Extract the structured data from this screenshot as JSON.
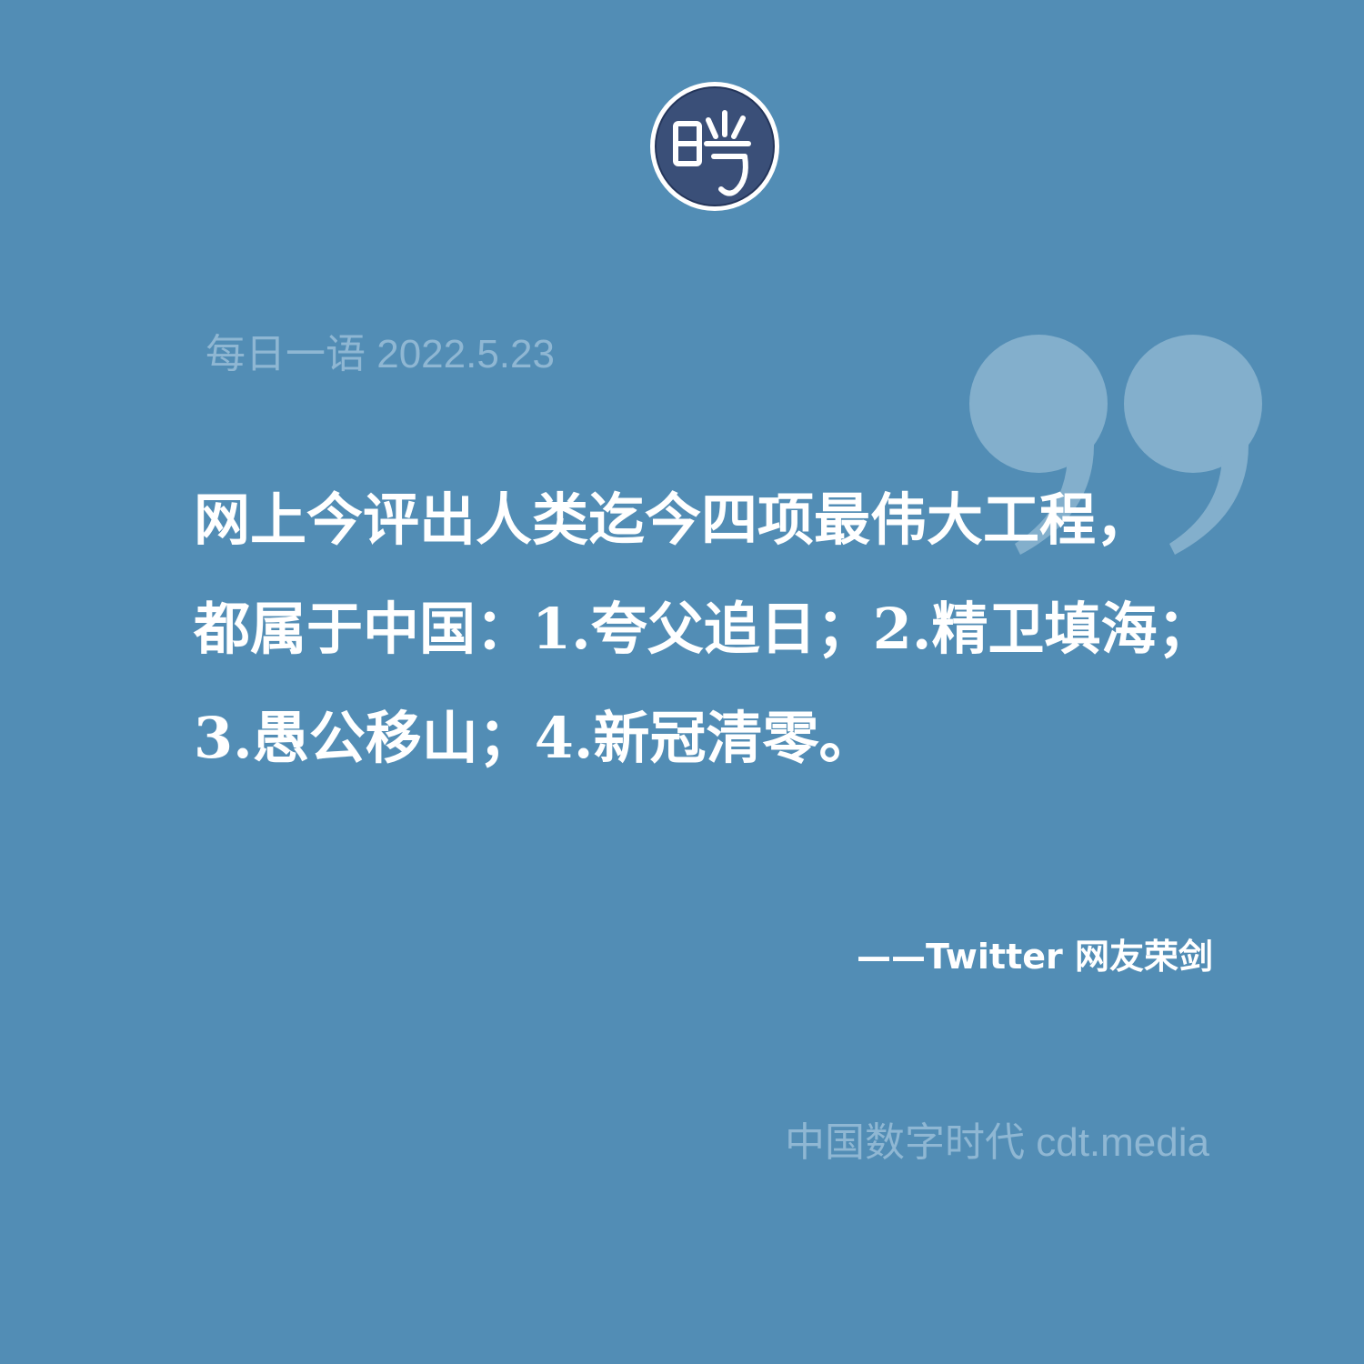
{
  "logo": {
    "icon": "cdt-seal-logo-icon",
    "colors": {
      "disc": "#3a4f78",
      "ring": "#ffffff",
      "glyph": "#ffffff"
    }
  },
  "header": {
    "date_line": "每日一语 2022.5.23"
  },
  "decoration": {
    "icon": "closing-quote-icon",
    "color": "#83afcc"
  },
  "quote": {
    "lines": [
      "网上今评出人类迄今四项最伟大工程，",
      "都属于中国：1.夸父追日；2.精卫填海；",
      "3.愚公移山；4.新冠清零。"
    ]
  },
  "attribution": "——Twitter 网友荣剑",
  "footer": {
    "brand": "中国数字时代 cdt.media"
  },
  "colors": {
    "background": "#528db5",
    "text": "#ffffff",
    "muted_text": "#8fb7d3"
  }
}
